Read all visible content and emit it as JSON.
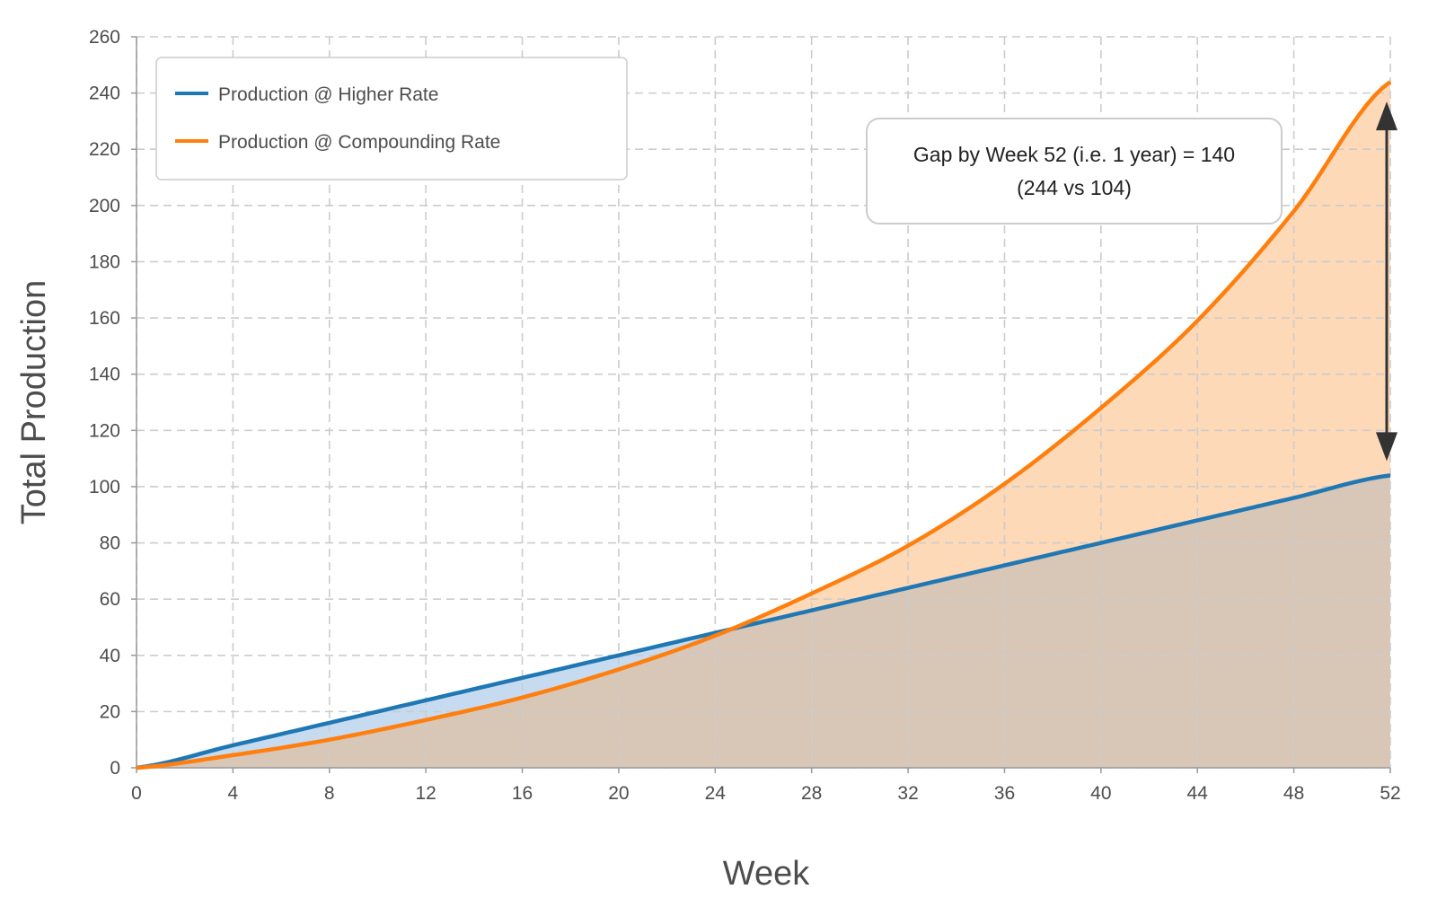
{
  "colors": {
    "higher": "#1f77b4",
    "compounding": "#ff7f0e",
    "higher_fill": "#c6dbef",
    "compounding_fill": "#fdd9b8",
    "overlap_fill": "#d8c6b6",
    "grid": "#cccccc",
    "axis": "#999999",
    "arrow": "#333333"
  },
  "chart_data": {
    "type": "line",
    "title": "",
    "xlabel": "Week",
    "ylabel": "Total Production",
    "xlim": [
      0,
      52
    ],
    "ylim": [
      0,
      260
    ],
    "x_ticks": [
      0,
      4,
      8,
      12,
      16,
      20,
      24,
      28,
      32,
      36,
      40,
      44,
      48,
      52
    ],
    "y_ticks": [
      0,
      20,
      40,
      60,
      80,
      100,
      120,
      140,
      160,
      180,
      200,
      220,
      240,
      260
    ],
    "grid": true,
    "grid_style": "dashed",
    "legend_position": "top-left",
    "area_fill": true,
    "series": [
      {
        "name": "Production @ Higher Rate",
        "color": "#1f77b4",
        "x": [
          0,
          4,
          8,
          12,
          16,
          20,
          24,
          28,
          32,
          36,
          40,
          44,
          48,
          52
        ],
        "values": [
          0,
          8,
          16,
          24,
          32,
          40,
          48,
          56,
          64,
          72,
          80,
          88,
          96,
          104
        ]
      },
      {
        "name": "Production @ Compounding Rate",
        "color": "#ff7f0e",
        "x": [
          0,
          4,
          8,
          12,
          16,
          20,
          24,
          28,
          32,
          36,
          40,
          44,
          48,
          52
        ],
        "values": [
          0,
          4.5,
          10,
          17,
          25,
          35,
          47,
          62,
          79,
          101,
          128,
          159,
          198,
          244
        ]
      }
    ],
    "annotation": {
      "line1": "Gap by Week 52 (i.e. 1 year) = 140",
      "line2": "(244 vs 104)",
      "arrow_x": 52,
      "arrow_from": 104,
      "arrow_to": 244
    }
  }
}
